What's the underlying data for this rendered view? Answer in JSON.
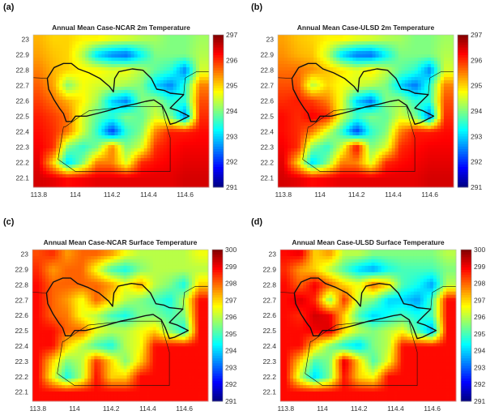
{
  "chart_data": [
    {
      "panel_label": "(a)",
      "type": "heatmap",
      "title": "Annual Mean Case-NCAR 2m Temperature",
      "xlabel": "",
      "ylabel": "",
      "xlim": [
        113.77,
        114.73
      ],
      "ylim": [
        22.04,
        23.03
      ],
      "xticks": [
        "113.8",
        "114",
        "114.2",
        "114.4",
        "114.6"
      ],
      "yticks": [
        "23",
        "22.9",
        "22.8",
        "22.7",
        "22.6",
        "22.5",
        "22.4",
        "22.3",
        "22.2",
        "22.1"
      ],
      "colorbar": {
        "range": [
          291,
          297
        ],
        "ticks": [
          "297",
          "296",
          "295",
          "294",
          "293",
          "292",
          "291"
        ],
        "colormap": "jet"
      },
      "grid_lon": [
        113.8,
        113.88,
        113.96,
        114.04,
        114.12,
        114.2,
        114.28,
        114.36,
        114.44,
        114.52,
        114.6,
        114.68
      ],
      "grid_lat": [
        23.0,
        22.9,
        22.8,
        22.7,
        22.6,
        22.5,
        22.4,
        22.3,
        22.2,
        22.1
      ],
      "values": [
        [
          295.2,
          295.0,
          295.0,
          294.8,
          294.8,
          294.6,
          294.5,
          294.3,
          294.2,
          294.0,
          294.0,
          294.2
        ],
        [
          295.3,
          295.1,
          295.0,
          294.3,
          293.0,
          292.5,
          292.3,
          293.2,
          294.0,
          294.0,
          294.0,
          294.3
        ],
        [
          295.5,
          295.2,
          295.0,
          294.8,
          294.8,
          294.6,
          294.7,
          294.3,
          293.8,
          293.5,
          292.5,
          294.5
        ],
        [
          295.7,
          295.3,
          294.0,
          294.7,
          294.5,
          294.4,
          294.2,
          294.0,
          293.0,
          292.5,
          293.5,
          295.5
        ],
        [
          295.9,
          295.6,
          295.2,
          294.8,
          294.2,
          293.0,
          292.5,
          294.0,
          294.2,
          293.5,
          293.5,
          295.8
        ],
        [
          296.1,
          295.9,
          295.6,
          294.5,
          293.8,
          293.5,
          294.0,
          293.8,
          294.5,
          294.0,
          292.5,
          296.0
        ],
        [
          296.2,
          296.0,
          295.5,
          294.5,
          293.5,
          292.0,
          293.5,
          294.0,
          295.5,
          296.1,
          296.1,
          296.2
        ],
        [
          296.3,
          296.0,
          294.0,
          293.5,
          294.0,
          295.5,
          294.0,
          294.5,
          296.0,
          296.2,
          296.3,
          296.3
        ],
        [
          296.4,
          295.0,
          293.0,
          294.0,
          295.5,
          295.5,
          294.5,
          296.0,
          296.2,
          296.3,
          296.4,
          296.4
        ],
        [
          296.5,
          296.4,
          296.2,
          296.3,
          296.4,
          296.4,
          296.4,
          296.4,
          296.4,
          296.4,
          296.5,
          296.5
        ]
      ]
    },
    {
      "panel_label": "(b)",
      "type": "heatmap",
      "title": "Annual Mean Case-ULSD 2m Temperature",
      "xlabel": "",
      "ylabel": "",
      "xlim": [
        113.77,
        114.73
      ],
      "ylim": [
        22.04,
        23.03
      ],
      "xticks": [
        "113.8",
        "114",
        "114.2",
        "114.4",
        "114.6"
      ],
      "yticks": [
        "23",
        "22.9",
        "22.8",
        "22.7",
        "22.6",
        "22.5",
        "22.4",
        "22.3",
        "22.2",
        "22.1"
      ],
      "colorbar": {
        "range": [
          291,
          297
        ],
        "ticks": [
          "297",
          "296",
          "295",
          "294",
          "293",
          "292",
          "291"
        ],
        "colormap": "jet"
      },
      "grid_lon": [
        113.8,
        113.88,
        113.96,
        114.04,
        114.12,
        114.2,
        114.28,
        114.36,
        114.44,
        114.52,
        114.6,
        114.68
      ],
      "grid_lat": [
        23.0,
        22.9,
        22.8,
        22.7,
        22.6,
        22.5,
        22.4,
        22.3,
        22.2,
        22.1
      ],
      "values": [
        [
          295.3,
          295.1,
          295.0,
          294.8,
          294.8,
          294.6,
          294.5,
          294.3,
          294.2,
          294.0,
          294.0,
          294.2
        ],
        [
          295.4,
          295.2,
          295.1,
          294.4,
          293.0,
          292.4,
          292.3,
          293.2,
          294.0,
          294.0,
          294.0,
          294.3
        ],
        [
          295.6,
          295.6,
          295.4,
          295.1,
          294.9,
          294.6,
          294.9,
          294.4,
          293.8,
          293.5,
          292.5,
          294.5
        ],
        [
          295.8,
          295.8,
          294.3,
          295.0,
          294.7,
          294.5,
          294.3,
          294.0,
          293.0,
          292.4,
          293.5,
          295.5
        ],
        [
          296.0,
          296.1,
          295.9,
          295.5,
          294.6,
          293.0,
          292.4,
          294.0,
          294.2,
          293.5,
          293.5,
          295.8
        ],
        [
          296.2,
          296.0,
          296.3,
          296.1,
          294.5,
          293.6,
          294.0,
          293.8,
          294.5,
          294.0,
          292.4,
          296.0
        ],
        [
          296.2,
          296.0,
          295.5,
          294.5,
          293.5,
          292.0,
          293.5,
          294.0,
          295.5,
          296.1,
          296.1,
          296.2
        ],
        [
          296.3,
          296.0,
          294.0,
          293.5,
          294.5,
          296.3,
          294.0,
          294.5,
          296.0,
          296.2,
          296.3,
          296.3
        ],
        [
          296.4,
          295.0,
          293.0,
          294.0,
          295.5,
          295.5,
          294.5,
          296.0,
          296.2,
          296.3,
          296.4,
          296.4
        ],
        [
          296.5,
          296.4,
          296.2,
          296.3,
          296.4,
          296.4,
          296.4,
          296.4,
          296.4,
          296.4,
          296.5,
          296.5
        ]
      ]
    },
    {
      "panel_label": "(c)",
      "type": "heatmap",
      "title": "Annual Mean Case-NCAR Surface Temperature",
      "xlabel": "",
      "ylabel": "",
      "xlim": [
        113.77,
        114.73
      ],
      "ylim": [
        22.04,
        23.03
      ],
      "xticks": [
        "113.8",
        "114",
        "114.2",
        "114.4",
        "114.6"
      ],
      "yticks": [
        "23",
        "22.9",
        "22.8",
        "22.7",
        "22.6",
        "22.5",
        "22.4",
        "22.3",
        "22.2",
        "22.1"
      ],
      "colorbar": {
        "range": [
          291,
          300
        ],
        "ticks": [
          "300",
          "299",
          "298",
          "297",
          "296",
          "295",
          "294",
          "293",
          "292",
          "291"
        ],
        "colormap": "jet"
      },
      "grid_lon": [
        113.8,
        113.88,
        113.96,
        114.04,
        114.12,
        114.2,
        114.28,
        114.36,
        114.44,
        114.52,
        114.6,
        114.68
      ],
      "grid_lat": [
        23.0,
        22.9,
        22.8,
        22.7,
        22.6,
        22.5,
        22.4,
        22.3,
        22.2,
        22.1
      ],
      "values": [
        [
          298.2,
          298.5,
          297.5,
          298.0,
          298.0,
          297.5,
          296.5,
          296.0,
          296.0,
          296.0,
          296.0,
          296.5
        ],
        [
          298.5,
          297.5,
          298.0,
          298.0,
          296.5,
          295.0,
          294.5,
          295.5,
          296.0,
          296.0,
          296.0,
          296.0
        ],
        [
          298.8,
          298.0,
          298.0,
          298.0,
          298.0,
          297.5,
          296.5,
          297.5,
          296.0,
          295.5,
          294.5,
          297.0
        ],
        [
          298.8,
          298.0,
          297.5,
          296.5,
          298.0,
          297.0,
          296.0,
          295.5,
          295.0,
          294.5,
          296.0,
          298.8
        ],
        [
          298.8,
          298.0,
          297.8,
          296.5,
          296.0,
          295.0,
          294.5,
          295.5,
          295.5,
          295.0,
          295.5,
          298.8
        ],
        [
          298.8,
          298.8,
          298.0,
          298.0,
          296.5,
          296.0,
          296.0,
          296.5,
          297.0,
          295.5,
          294.5,
          298.8
        ],
        [
          298.8,
          298.8,
          297.0,
          296.0,
          295.0,
          294.5,
          296.0,
          296.5,
          298.8,
          298.8,
          298.8,
          298.8
        ],
        [
          298.8,
          297.0,
          295.5,
          296.0,
          298.5,
          297.0,
          295.5,
          297.0,
          298.8,
          298.8,
          298.8,
          298.8
        ],
        [
          298.8,
          296.5,
          294.5,
          296.0,
          298.8,
          297.0,
          297.0,
          298.8,
          298.8,
          298.8,
          298.8,
          298.8
        ],
        [
          298.8,
          298.8,
          298.8,
          298.8,
          298.8,
          298.8,
          298.8,
          298.8,
          298.8,
          298.8,
          298.8,
          298.8
        ]
      ]
    },
    {
      "panel_label": "(d)",
      "type": "heatmap",
      "title": "Annual Mean Case-ULSD Surface Temperature",
      "xlabel": "",
      "ylabel": "",
      "xlim": [
        113.77,
        114.73
      ],
      "ylim": [
        22.04,
        23.03
      ],
      "xticks": [
        "113.8",
        "114",
        "114.2",
        "114.4",
        "114.6"
      ],
      "yticks": [
        "23",
        "22.9",
        "22.8",
        "22.7",
        "22.6",
        "22.5",
        "22.4",
        "22.3",
        "22.2",
        "22.1"
      ],
      "colorbar": {
        "range": [
          291,
          300
        ],
        "ticks": [
          "300",
          "299",
          "298",
          "297",
          "296",
          "295",
          "294",
          "293",
          "292",
          "291"
        ],
        "colormap": "jet"
      },
      "grid_lon": [
        113.8,
        113.88,
        113.96,
        114.04,
        114.12,
        114.2,
        114.28,
        114.36,
        114.44,
        114.52,
        114.6,
        114.68
      ],
      "grid_lat": [
        23.0,
        22.9,
        22.8,
        22.7,
        22.6,
        22.5,
        22.4,
        22.3,
        22.2,
        22.1
      ],
      "values": [
        [
          298.8,
          299.0,
          297.0,
          297.5,
          296.0,
          296.0,
          295.5,
          295.5,
          295.5,
          295.5,
          295.5,
          296.0
        ],
        [
          298.5,
          297.5,
          297.0,
          296.0,
          295.0,
          294.0,
          293.5,
          294.5,
          295.0,
          295.0,
          295.0,
          295.5
        ],
        [
          298.8,
          298.0,
          299.0,
          298.0,
          297.0,
          296.5,
          298.0,
          297.0,
          295.0,
          294.5,
          293.5,
          296.0
        ],
        [
          298.8,
          299.2,
          298.5,
          295.5,
          298.5,
          296.0,
          295.5,
          294.0,
          294.0,
          293.5,
          295.0,
          298.8
        ],
        [
          298.8,
          298.5,
          299.3,
          299.0,
          297.0,
          295.0,
          294.0,
          294.5,
          295.0,
          294.5,
          295.0,
          298.8
        ],
        [
          298.8,
          298.8,
          299.0,
          299.2,
          297.0,
          296.0,
          295.5,
          296.0,
          296.5,
          295.0,
          293.5,
          298.8
        ],
        [
          298.8,
          298.8,
          297.0,
          295.5,
          294.5,
          294.0,
          295.5,
          296.0,
          298.8,
          298.8,
          298.8,
          298.8
        ],
        [
          298.8,
          297.0,
          295.0,
          295.5,
          299.2,
          297.0,
          295.0,
          296.5,
          298.8,
          298.8,
          298.8,
          298.8
        ],
        [
          298.8,
          296.0,
          294.0,
          295.5,
          298.8,
          297.0,
          296.5,
          298.8,
          298.8,
          298.8,
          298.8,
          298.8
        ],
        [
          298.8,
          298.8,
          298.8,
          298.8,
          298.8,
          298.8,
          298.8,
          298.8,
          298.8,
          298.8,
          298.8,
          298.8
        ]
      ]
    }
  ],
  "boundaries": {
    "shenzhen": [
      [
        113.847,
        22.747
      ],
      [
        113.884,
        22.818
      ],
      [
        113.935,
        22.844
      ],
      [
        113.979,
        22.844
      ],
      [
        114.016,
        22.809
      ],
      [
        114.075,
        22.783
      ],
      [
        114.134,
        22.747
      ],
      [
        114.186,
        22.695
      ],
      [
        114.208,
        22.66
      ],
      [
        114.215,
        22.747
      ],
      [
        114.238,
        22.791
      ],
      [
        114.311,
        22.809
      ],
      [
        114.37,
        22.8
      ],
      [
        114.415,
        22.747
      ],
      [
        114.444,
        22.677
      ],
      [
        114.488,
        22.668
      ],
      [
        114.518,
        22.651
      ],
      [
        114.592,
        22.642
      ],
      [
        114.547,
        22.589
      ],
      [
        114.518,
        22.554
      ],
      [
        114.562,
        22.537
      ],
      [
        114.621,
        22.502
      ],
      [
        114.547,
        22.458
      ],
      [
        114.518,
        22.449
      ],
      [
        114.496,
        22.519
      ],
      [
        114.474,
        22.572
      ],
      [
        114.429,
        22.607
      ],
      [
        114.385,
        22.598
      ],
      [
        114.326,
        22.581
      ],
      [
        114.252,
        22.563
      ],
      [
        114.178,
        22.537
      ],
      [
        114.12,
        22.519
      ],
      [
        114.061,
        22.502
      ],
      [
        114.001,
        22.502
      ],
      [
        113.979,
        22.467
      ],
      [
        113.95,
        22.467
      ],
      [
        113.935,
        22.519
      ],
      [
        113.913,
        22.554
      ],
      [
        113.884,
        22.607
      ],
      [
        113.854,
        22.677
      ],
      [
        113.847,
        22.747
      ]
    ],
    "hongkong": [
      [
        113.943,
        22.431
      ],
      [
        114.016,
        22.493
      ],
      [
        114.075,
        22.537
      ],
      [
        114.282,
        22.563
      ],
      [
        114.474,
        22.563
      ],
      [
        114.488,
        22.484
      ],
      [
        114.518,
        22.361
      ],
      [
        114.518,
        22.142
      ],
      [
        114.001,
        22.142
      ],
      [
        113.906,
        22.221
      ],
      [
        113.935,
        22.431
      ],
      [
        113.943,
        22.431
      ]
    ],
    "coast_west": [
      [
        113.77,
        22.752
      ],
      [
        113.847,
        22.747
      ]
    ],
    "coast_east": [
      [
        114.592,
        22.642
      ],
      [
        114.6,
        22.75
      ],
      [
        114.66,
        22.79
      ],
      [
        114.73,
        22.79
      ]
    ]
  }
}
